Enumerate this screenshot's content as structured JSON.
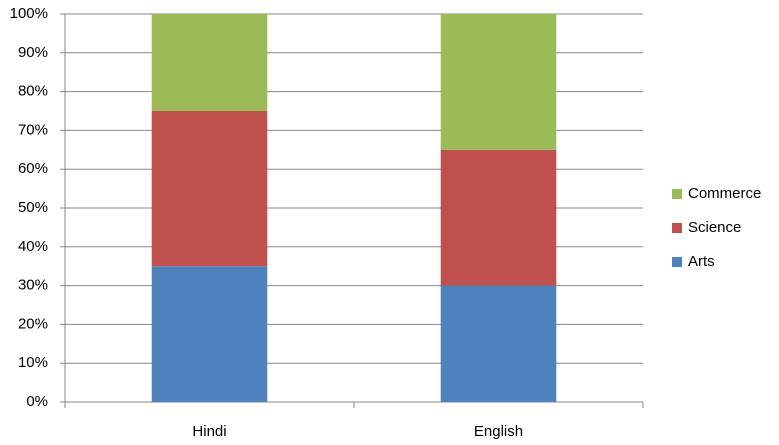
{
  "chart_data": {
    "type": "stacked-bar",
    "categories": [
      "Hindi",
      "English"
    ],
    "series": [
      {
        "name": "Arts",
        "color": "#4f81bd",
        "values": [
          35,
          30
        ]
      },
      {
        "name": "Science",
        "color": "#c0504d",
        "values": [
          40,
          35
        ]
      },
      {
        "name": "Commerce",
        "color": "#9bbb59",
        "values": [
          25,
          35
        ]
      }
    ],
    "ylim": [
      0,
      100
    ],
    "yticks": [
      {
        "value": 0,
        "label": "0%"
      },
      {
        "value": 10,
        "label": "10%"
      },
      {
        "value": 20,
        "label": "20%"
      },
      {
        "value": 30,
        "label": "30%"
      },
      {
        "value": 40,
        "label": "40%"
      },
      {
        "value": 50,
        "label": "50%"
      },
      {
        "value": 60,
        "label": "60%"
      },
      {
        "value": 70,
        "label": "70%"
      },
      {
        "value": 80,
        "label": "80%"
      },
      {
        "value": 90,
        "label": "90%"
      },
      {
        "value": 100,
        "label": "100%"
      }
    ],
    "grid": true,
    "legend": "right"
  }
}
